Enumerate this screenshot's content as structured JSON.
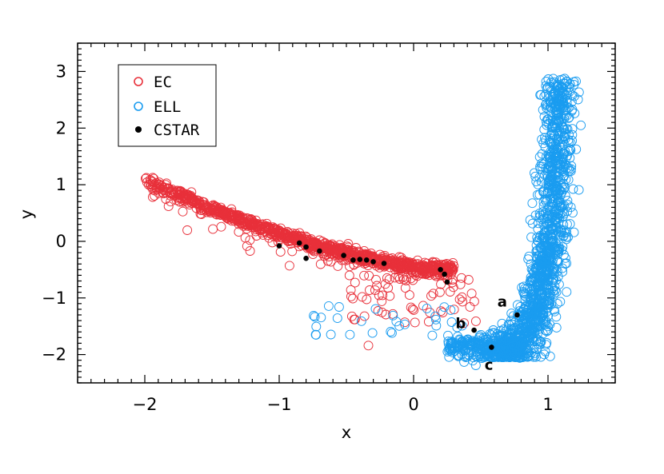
{
  "chart_data": {
    "type": "scatter",
    "title": "",
    "xlabel": "x",
    "ylabel": "y",
    "xlim": [
      -2.5,
      1.5
    ],
    "ylim": [
      -2.5,
      3.5
    ],
    "xticks": [
      -2,
      -1,
      0,
      1
    ],
    "yticks": [
      -2,
      -1,
      0,
      1,
      2,
      3
    ],
    "xtick_labels": [
      "−2",
      "−1",
      "0",
      "1"
    ],
    "ytick_labels": [
      "−2",
      "−1",
      "0",
      "1",
      "2",
      "3"
    ],
    "grid": false,
    "legend_position": "top-left",
    "series": [
      {
        "name": "EC",
        "marker": "open-circle",
        "color": "#e8303a",
        "density_regions": [
          {
            "x": -1.6,
            "y": 0.5,
            "count": 250
          },
          {
            "x": -1.0,
            "y": 0.0,
            "count": 200
          },
          {
            "x": -0.4,
            "y": -0.35,
            "count": 180
          },
          {
            "x": 0.1,
            "y": -0.5,
            "count": 120
          }
        ]
      },
      {
        "name": "ELL",
        "marker": "open-circle",
        "color": "#1a9cf0",
        "density_regions": [
          {
            "x": 0.7,
            "y": -1.8,
            "count": 200
          },
          {
            "x": 0.9,
            "y": -0.5,
            "count": 250
          },
          {
            "x": 1.05,
            "y": 1.0,
            "count": 200
          },
          {
            "x": 1.1,
            "y": 2.5,
            "count": 120
          }
        ]
      },
      {
        "name": "CSTAR",
        "marker": "filled-circle",
        "color": "#000000",
        "points": [
          {
            "x": -1.0,
            "y": -0.08
          },
          {
            "x": -0.85,
            "y": -0.03
          },
          {
            "x": -0.8,
            "y": -0.1
          },
          {
            "x": -0.8,
            "y": -0.3
          },
          {
            "x": -0.7,
            "y": -0.17
          },
          {
            "x": -0.52,
            "y": -0.25
          },
          {
            "x": -0.45,
            "y": -0.33
          },
          {
            "x": -0.4,
            "y": -0.32
          },
          {
            "x": -0.35,
            "y": -0.33
          },
          {
            "x": -0.3,
            "y": -0.36
          },
          {
            "x": -0.22,
            "y": -0.39
          },
          {
            "x": 0.2,
            "y": -0.5
          },
          {
            "x": 0.23,
            "y": -0.58
          },
          {
            "x": 0.25,
            "y": -0.72
          },
          {
            "x": 0.45,
            "y": -1.57
          },
          {
            "x": 0.58,
            "y": -1.87
          },
          {
            "x": 0.77,
            "y": -1.3
          }
        ]
      }
    ],
    "annotations": [
      {
        "text": "a",
        "x": 0.66,
        "y": -1.15
      },
      {
        "text": "b",
        "x": 0.35,
        "y": -1.53
      },
      {
        "text": "c",
        "x": 0.56,
        "y": -2.27
      }
    ]
  }
}
